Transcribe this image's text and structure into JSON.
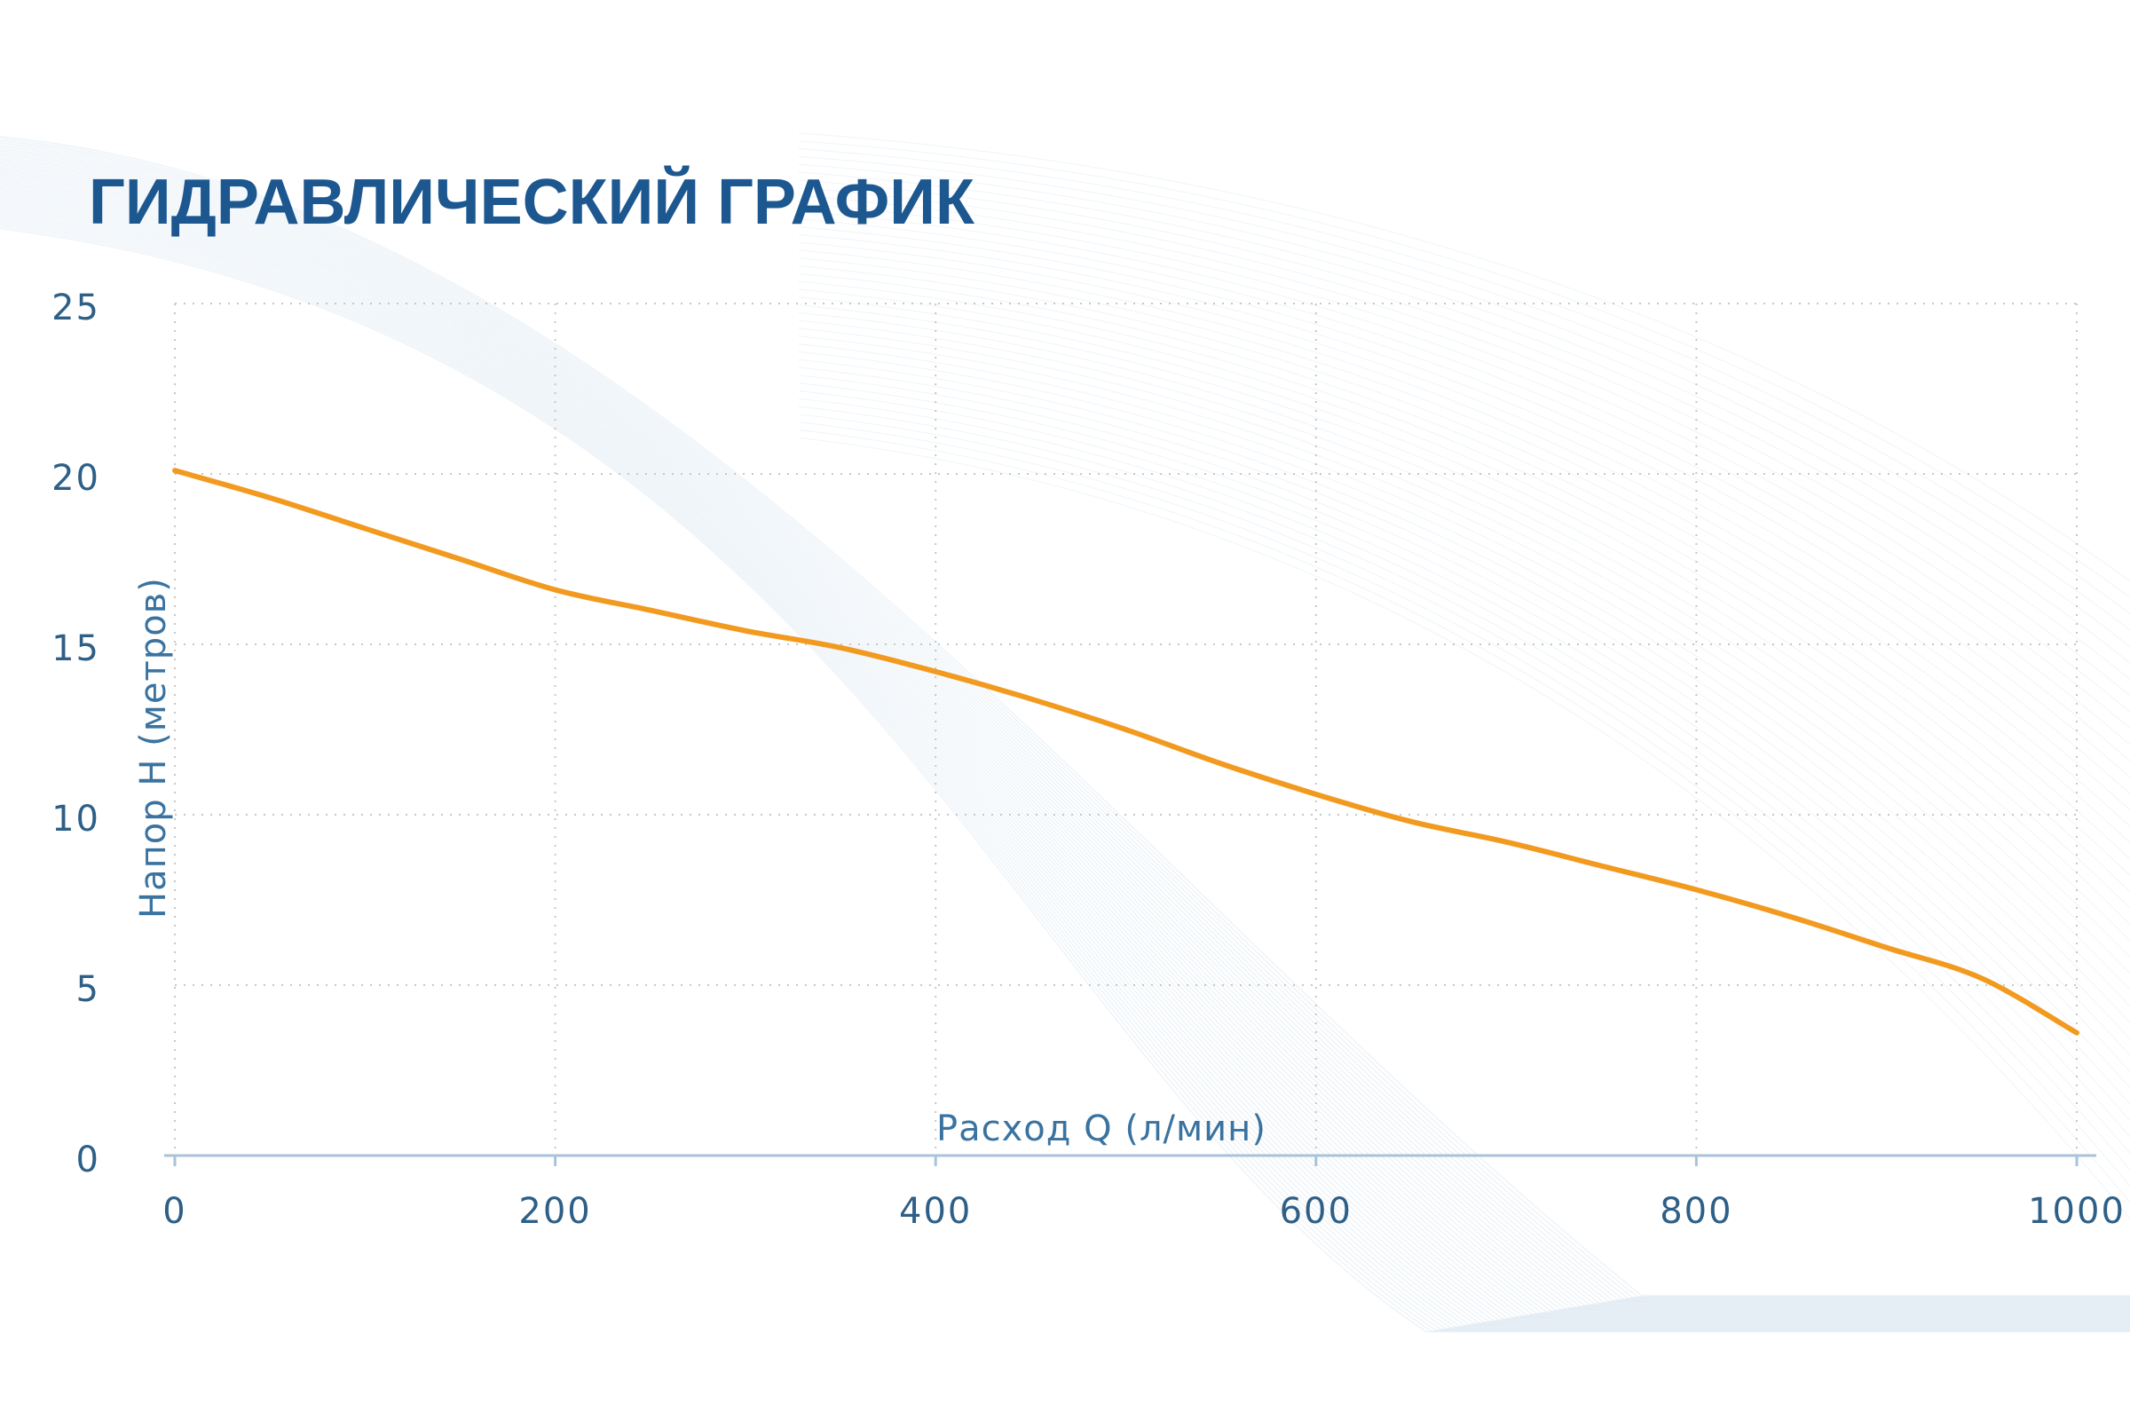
{
  "chart_data": {
    "type": "line",
    "title": "ГИДРАВЛИЧЕСКИЙ ГРАФИК",
    "xlabel": "Расход Q (л/мин)",
    "ylabel": "Напор H (метров)",
    "xlim": [
      0,
      1000
    ],
    "ylim": [
      0,
      25
    ],
    "x_ticks": [
      0,
      200,
      400,
      600,
      800,
      1000
    ],
    "y_ticks": [
      0,
      5,
      10,
      15,
      20,
      25
    ],
    "grid": true,
    "series": [
      {
        "color": "#f29a1f",
        "x": [
          0,
          50,
          100,
          150,
          200,
          250,
          300,
          350,
          400,
          450,
          500,
          550,
          600,
          650,
          700,
          750,
          800,
          850,
          900,
          950,
          1000
        ],
        "y": [
          20.1,
          19.3,
          18.4,
          17.5,
          16.6,
          16.0,
          15.4,
          14.9,
          14.2,
          13.4,
          12.5,
          11.5,
          10.6,
          9.8,
          9.2,
          8.5,
          7.8,
          7.0,
          6.1,
          5.2,
          3.6
        ]
      }
    ]
  },
  "colors": {
    "title": "#1c5790",
    "tick_text": "#2e5f86",
    "axis_line": "#a9c3d8",
    "grid": "#c7c7c7",
    "curve": "#f29a1f",
    "wave": "#8fb3d3"
  }
}
